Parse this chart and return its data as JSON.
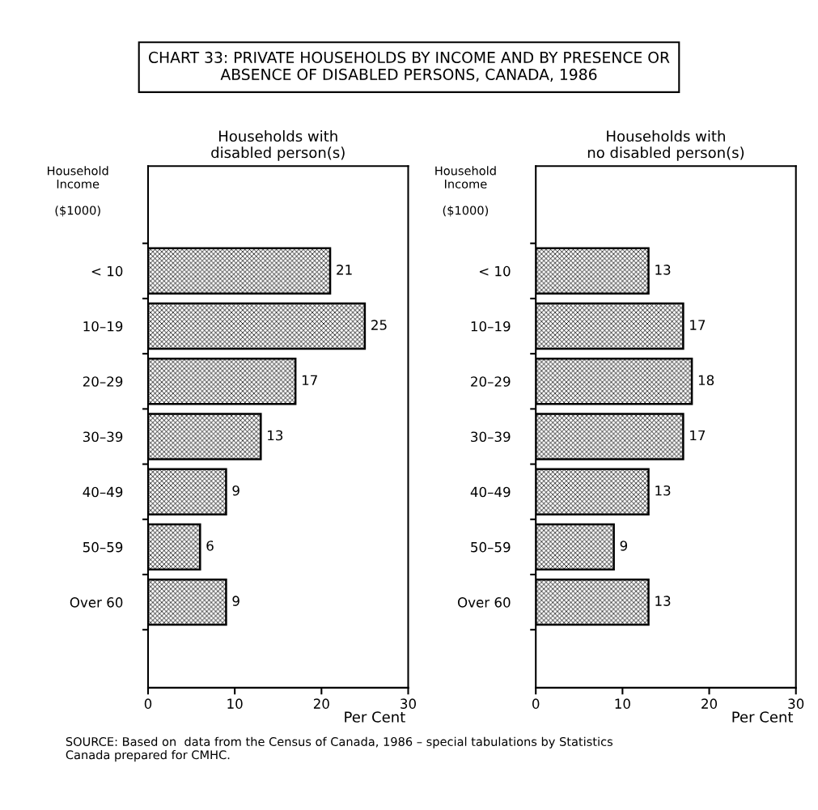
{
  "chart_data": [
    {
      "type": "bar",
      "orientation": "horizontal",
      "title": "CHART 33: PRIVATE HOUSEHOLDS BY INCOME AND BY PRESENCE OR\nABSENCE OF DISABLED PERSONS, CANADA, 1986",
      "subtitle": "Households with\ndisabled person(s)",
      "ylabel": "Household\nIncome\n\n($1000)",
      "xlabel": "Per Cent",
      "categories": [
        "< 10",
        "10–19",
        "20–29",
        "30–39",
        "40–49",
        "50–59",
        "Over 60"
      ],
      "values": [
        21,
        25,
        17,
        13,
        9,
        6,
        9
      ],
      "color": "#000000",
      "data_labels": true,
      "xlim": [
        0,
        30
      ],
      "xticks": [
        0,
        10,
        20,
        30
      ],
      "grid": false,
      "legend": false,
      "annotations": [
        "SOURCE: Based on  data from the Census of Canada, 1986 – special tabulations by Statistics\nCanada prepared for CMHC."
      ]
    },
    {
      "type": "bar",
      "orientation": "horizontal",
      "subtitle": "Households with\nno disabled person(s)",
      "ylabel": "Household\nIncome\n\n($1000)",
      "xlabel": "Per Cent",
      "categories": [
        "< 10",
        "10–19",
        "20–29",
        "30–39",
        "40–49",
        "50–59",
        "Over 60"
      ],
      "values": [
        13,
        17,
        18,
        17,
        13,
        9,
        13
      ],
      "color": "#000000",
      "data_labels": true,
      "xlim": [
        0,
        30
      ],
      "xticks": [
        0,
        10,
        20,
        30
      ],
      "grid": false,
      "legend": false
    }
  ]
}
